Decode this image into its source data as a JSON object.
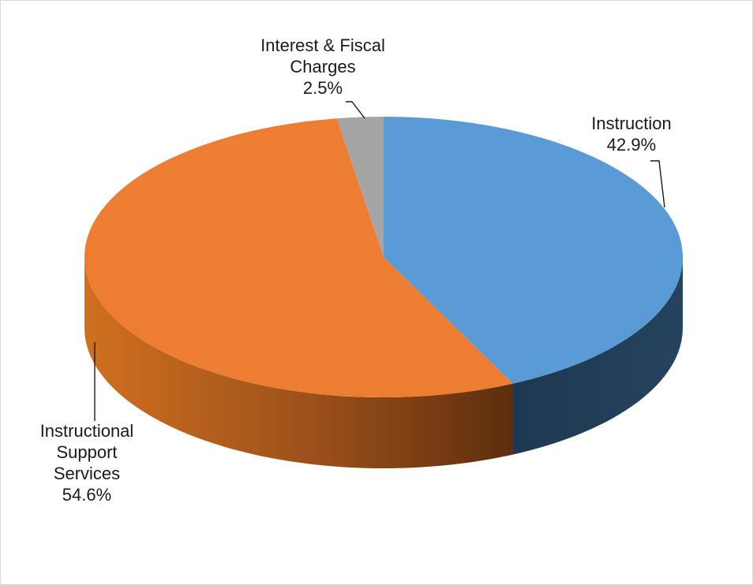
{
  "chart_data": {
    "type": "pie",
    "style": "3d",
    "title": "",
    "slices": [
      {
        "label_lines": [
          "Instruction"
        ],
        "value": 42.9,
        "value_label": "42.9%",
        "color": "#5B9BD5",
        "side_color": "#22405A"
      },
      {
        "label_lines": [
          "Instructional",
          "Support",
          "Services"
        ],
        "value": 54.6,
        "value_label": "54.6%",
        "color": "#ED7D31",
        "side_color": "#B8561A"
      },
      {
        "label_lines": [
          "Interest & Fiscal",
          "Charges"
        ],
        "value": 2.5,
        "value_label": "2.5%",
        "color": "#A5A5A5",
        "side_color": "#7F7F7F"
      }
    ],
    "data_labels": "outside with leader lines",
    "legend": "none"
  }
}
